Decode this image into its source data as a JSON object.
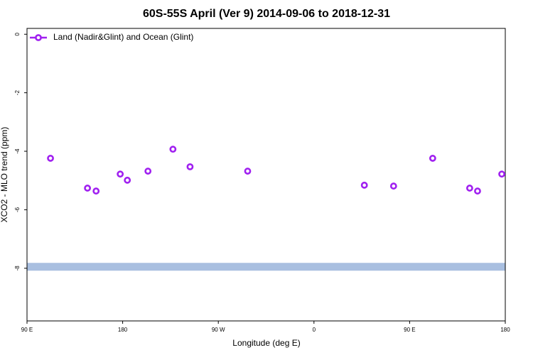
{
  "chart_data": {
    "type": "scatter",
    "title": "60S-55S April (Ver 9)   2014-09-06 to 2018-12-31",
    "xlabel": "Longitude (deg E)",
    "ylabel": "XCO2 - MLO trend (ppm)",
    "xlim": [
      90,
      540
    ],
    "xticks": [
      {
        "value": 90,
        "label": "90 E"
      },
      {
        "value": 180,
        "label": "180"
      },
      {
        "value": 270,
        "label": "90 W"
      },
      {
        "value": 360,
        "label": "0"
      },
      {
        "value": 450,
        "label": "90 E"
      },
      {
        "value": 540,
        "label": "180"
      }
    ],
    "ylim": [
      -9.8,
      0.2
    ],
    "yticks": [
      0,
      -2,
      -4,
      -6,
      -8
    ],
    "legend": "top-left",
    "series": [
      {
        "name": "Land (Nadir&Glint) and Ocean (Glint)",
        "color": "#a020f0",
        "x": [
          112.1,
          146.9,
          155,
          177.7,
          184.4,
          203.8,
          227.3,
          243.4,
          297.6,
          407.4,
          434.9,
          471.7,
          506.5,
          513.9,
          536.7
        ],
        "values": [
          -4.24,
          -5.26,
          -5.36,
          -4.78,
          -4.99,
          -4.68,
          -3.93,
          -4.53,
          -4.68,
          -5.16,
          -5.19,
          -4.24,
          -5.26,
          -5.36,
          -4.78
        ]
      }
    ],
    "reference_band": {
      "value": -7.95,
      "color": "#a9bfe0"
    }
  }
}
